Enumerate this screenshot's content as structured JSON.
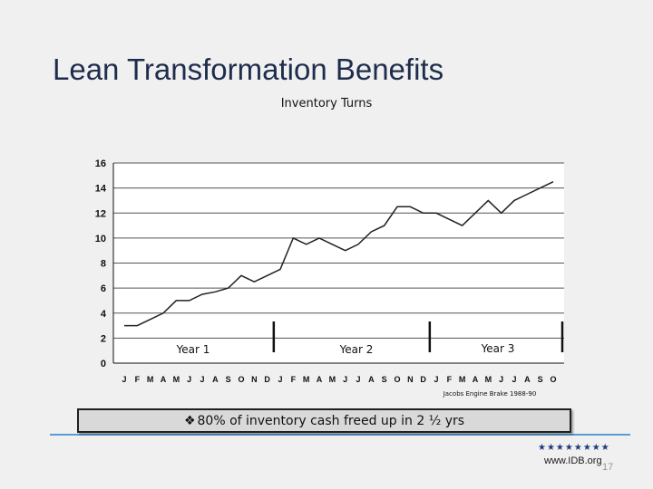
{
  "slide": {
    "title": "Lean Transformation Benefits",
    "callout_bullet": "❖",
    "callout_text": "80% of inventory cash freed up in 2 ½ yrs",
    "stars": "★★★★★★★★",
    "website": "www.IDB.org",
    "page_number": "17",
    "colors": {
      "title": "#1f2d4d",
      "rule": "#5b9bd5",
      "callout_bg": "#d9d9d9"
    }
  },
  "chart_data": {
    "type": "line",
    "title": "Inventory Turns",
    "note": "Jacobs Engine Brake 1988-90",
    "ylim": [
      0,
      16
    ],
    "yticks": [
      0,
      2,
      4,
      6,
      8,
      10,
      12,
      14,
      16
    ],
    "grid": true,
    "categories": [
      "J",
      "F",
      "M",
      "A",
      "M",
      "J",
      "J",
      "A",
      "S",
      "O",
      "N",
      "D",
      "J",
      "F",
      "M",
      "A",
      "M",
      "J",
      "J",
      "A",
      "S",
      "O",
      "N",
      "D",
      "J",
      "F",
      "M",
      "A",
      "M",
      "J",
      "J",
      "A",
      "S",
      "O"
    ],
    "series": [
      {
        "name": "Inventory Turns",
        "values": [
          3,
          3,
          3.5,
          4,
          5,
          5,
          5.5,
          5.7,
          6,
          7,
          6.5,
          7,
          7.5,
          10,
          9.5,
          10,
          9.5,
          9,
          9.5,
          10.5,
          11,
          12.5,
          12.5,
          12,
          12,
          11.5,
          11,
          12,
          13,
          12,
          13,
          13.5,
          14,
          14.5
        ]
      }
    ],
    "year_labels": [
      "Year 1",
      "Year 2",
      "Year 3"
    ],
    "year_dividers_after_index": [
      11,
      23,
      33
    ]
  }
}
